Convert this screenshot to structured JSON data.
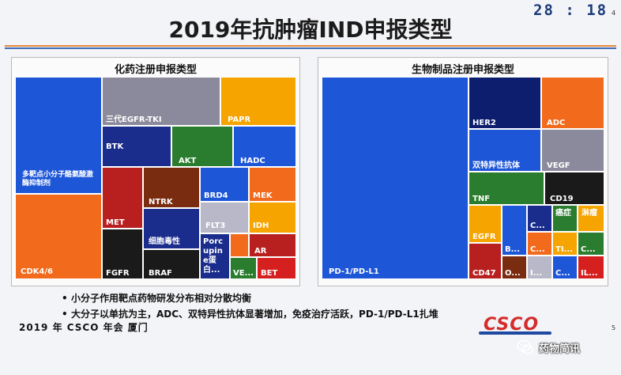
{
  "header": {
    "timer": "28 : 18",
    "corner_top": "4",
    "corner_bottom": "5",
    "title": "2019年抗肿瘤IND申报类型"
  },
  "colors": {
    "line_orange": "#e58a3a",
    "line_blue": "#3d6cb8",
    "blue": "#1e56d8",
    "orange": "#f26a1b",
    "gray": "#8a8a9c",
    "gold": "#f5a400",
    "navy": "#1a2c8c",
    "green": "#2a7d2e",
    "red": "#b81f1f",
    "brown": "#7a2c10",
    "purple": "#7a3c9e",
    "lightgray": "#b8b8c8",
    "black": "#1a1a1a",
    "darkblue": "#0d1e6e"
  },
  "left_panel": {
    "title": "化药注册申报类型",
    "tiles": [
      {
        "label": "多靶点小分子酪氨酸激酶抑制剂",
        "color": "#1e56d8"
      },
      {
        "label": "CDK4/6",
        "color": "#f26a1b"
      },
      {
        "label": "三代EGFR-TKI",
        "color": "#8a8a9c"
      },
      {
        "label": "PAPR",
        "color": "#f5a400"
      },
      {
        "label": "BTK",
        "color": "#1a2c8c"
      },
      {
        "label": "AKT",
        "color": "#2a7d2e"
      },
      {
        "label": "HADC",
        "color": "#1e56d8"
      },
      {
        "label": "MET",
        "color": "#b81f1f"
      },
      {
        "label": "FGFR",
        "color": "#1a1a1a"
      },
      {
        "label": "NTRK",
        "color": "#7a2c10"
      },
      {
        "label": "细胞毒性",
        "color": "#1a2c8c"
      },
      {
        "label": "BRAF",
        "color": "#1a1a1a"
      },
      {
        "label": "BRD4",
        "color": "#1e56d8"
      },
      {
        "label": "MEK",
        "color": "#f26a1b"
      },
      {
        "label": "FLT3",
        "color": "#b8b8c8"
      },
      {
        "label": "IDH",
        "color": "#f5a400"
      },
      {
        "label": "Porc upin e蛋白...",
        "color": "#1a2c8c"
      },
      {
        "label": "AR",
        "color": "#b81f1f"
      },
      {
        "label": "VE...",
        "color": "#2a7d2e"
      },
      {
        "label": "BET",
        "color": "#d62020"
      }
    ]
  },
  "right_panel": {
    "title": "生物制品注册申报类型",
    "tiles": [
      {
        "label": "PD-1/PD-L1",
        "color": "#1e56d8"
      },
      {
        "label": "HER2",
        "color": "#0d1e6e"
      },
      {
        "label": "ADC",
        "color": "#f26a1b"
      },
      {
        "label": "双特异性抗体",
        "color": "#1e56d8"
      },
      {
        "label": "VEGF",
        "color": "#8a8a9c"
      },
      {
        "label": "TNF",
        "color": "#2a7d2e"
      },
      {
        "label": "CD19",
        "color": "#1a1a1a"
      },
      {
        "label": "EGFR",
        "color": "#f5a400"
      },
      {
        "label": "CD47",
        "color": "#b81f1f"
      },
      {
        "label": "B...",
        "color": "#1e56d8"
      },
      {
        "label": "O...",
        "color": "#7a2c10"
      },
      {
        "label": "C...",
        "color": "#1a2c8c"
      },
      {
        "label": "癌症",
        "color": "#2a7d2e"
      },
      {
        "label": "淋瘤",
        "color": "#f5a400"
      },
      {
        "label": "C...",
        "color": "#f26a1b"
      },
      {
        "label": "TI...",
        "color": "#f5a400"
      },
      {
        "label": "C...",
        "color": "#2a7d2e"
      },
      {
        "label": "I...",
        "color": "#b8b8c8"
      },
      {
        "label": "C...",
        "color": "#1e56d8"
      },
      {
        "label": "IL...",
        "color": "#d62020"
      }
    ]
  },
  "bullets": [
    "小分子作用靶点药物研发分布相对分散均衡",
    "大分子以单抗为主，ADC、双特异性抗体显著增加，免疫治疗活跃，PD-1/PD-L1扎堆"
  ],
  "footer": "2019 年 CSCO 年会  厦门",
  "logo_text": "CSCO",
  "brand": "药物简讯"
}
